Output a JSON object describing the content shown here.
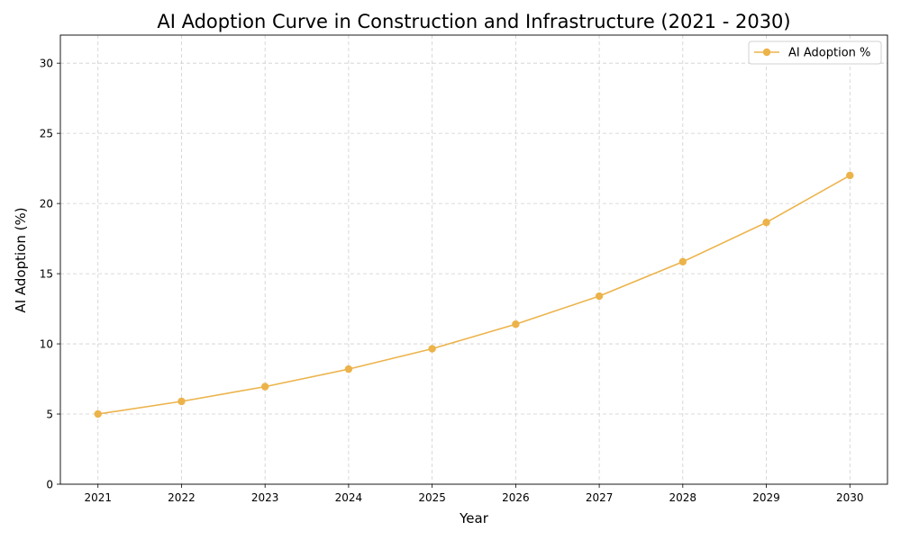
{
  "chart_data": {
    "type": "line",
    "title": "AI Adoption Curve in Construction and Infrastructure (2021 - 2030)",
    "xlabel": "Year",
    "ylabel": "AI Adoption (%)",
    "x": [
      2021,
      2022,
      2023,
      2024,
      2025,
      2026,
      2027,
      2028,
      2029,
      2030
    ],
    "xticks": [
      "2021",
      "2022",
      "2023",
      "2024",
      "2025",
      "2026",
      "2027",
      "2028",
      "2029",
      "2030"
    ],
    "yticks": [
      0,
      5,
      10,
      15,
      20,
      25,
      30
    ],
    "xlim": [
      2020.55,
      2030.45
    ],
    "ylim": [
      0,
      32
    ],
    "grid": true,
    "legend_position": "top-right",
    "series": [
      {
        "name": "AI Adoption %",
        "color": "#ECB34A",
        "marker": "circle",
        "values": [
          5.0,
          5.9,
          6.95,
          8.2,
          9.65,
          11.4,
          13.4,
          15.85,
          18.65,
          22.0
        ]
      }
    ]
  }
}
